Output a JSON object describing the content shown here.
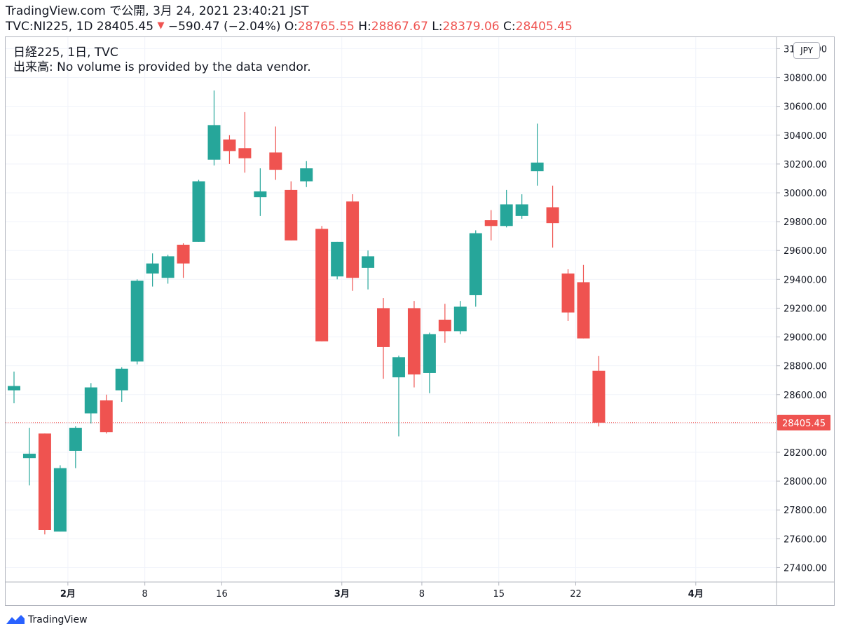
{
  "header": {
    "line1": "TradingView.com で公開, 3月 24, 2021 23:40:21 JST",
    "symbol_info": "TVC:NI225, 1D 28405.45",
    "arrow": "▼",
    "change": "−590.47 (−2.04%)",
    "o_label": "O:",
    "o_value": "28765.55",
    "h_label": "H:",
    "h_value": "28867.67",
    "l_label": "L:",
    "l_value": "28379.06",
    "c_label": "C:",
    "c_value": "28405.45"
  },
  "legend": {
    "title": "日経225, 1日, TVC",
    "volume_note": "出来高: No volume is provided by the data vendor."
  },
  "currency": "JPY",
  "last_price_label": "28405.45",
  "footer": {
    "brand": "TradingView"
  },
  "colors": {
    "up": "#26a69a",
    "down": "#ef5350",
    "grid": "#f0f3fa",
    "axis": "#b2b5be",
    "text": "#131722"
  },
  "chart_data": {
    "type": "candlestick",
    "y_ticks": [
      "27400.00",
      "27600.00",
      "27800.00",
      "28000.00",
      "28200.00",
      "28400.00",
      "28600.00",
      "28800.00",
      "29000.00",
      "29200.00",
      "29400.00",
      "29600.00",
      "29800.00",
      "30000.00",
      "30200.00",
      "30400.00",
      "30600.00",
      "30800.00",
      "31000.00"
    ],
    "ylim": [
      27300,
      31080
    ],
    "x_ticks": [
      {
        "i": 3.5,
        "label": "2月",
        "bold": true
      },
      {
        "i": 8.5,
        "label": "8",
        "bold": false
      },
      {
        "i": 13.5,
        "label": "16",
        "bold": false
      },
      {
        "i": 21.3,
        "label": "3月",
        "bold": true
      },
      {
        "i": 26.5,
        "label": "8",
        "bold": false
      },
      {
        "i": 31.5,
        "label": "15",
        "bold": false
      },
      {
        "i": 36.5,
        "label": "22",
        "bold": false
      },
      {
        "i": 44.3,
        "label": "4月",
        "bold": true
      }
    ],
    "x_range": [
      0,
      49
    ],
    "last_price": 28405.45,
    "candles": [
      {
        "o": 28630,
        "h": 28760,
        "l": 28540,
        "c": 28660
      },
      {
        "o": 28160,
        "h": 28370,
        "l": 27970,
        "c": 28190
      },
      {
        "o": 28330,
        "h": 28330,
        "l": 27630,
        "c": 27660
      },
      {
        "o": 27650,
        "h": 28110,
        "l": 27650,
        "c": 28090
      },
      {
        "o": 28210,
        "h": 28380,
        "l": 28090,
        "c": 28370
      },
      {
        "o": 28470,
        "h": 28680,
        "l": 28400,
        "c": 28650
      },
      {
        "o": 28560,
        "h": 28600,
        "l": 28330,
        "c": 28340
      },
      {
        "o": 28630,
        "h": 28790,
        "l": 28550,
        "c": 28780
      },
      {
        "o": 28830,
        "h": 29400,
        "l": 28810,
        "c": 29390
      },
      {
        "o": 29440,
        "h": 29580,
        "l": 29350,
        "c": 29510
      },
      {
        "o": 29410,
        "h": 29570,
        "l": 29370,
        "c": 29560
      },
      {
        "o": 29640,
        "h": 29650,
        "l": 29410,
        "c": 29510
      },
      {
        "o": 29660,
        "h": 30090,
        "l": 29660,
        "c": 30080
      },
      {
        "o": 30230,
        "h": 30710,
        "l": 30190,
        "c": 30470
      },
      {
        "o": 30370,
        "h": 30400,
        "l": 30200,
        "c": 30290
      },
      {
        "o": 30310,
        "h": 30560,
        "l": 30140,
        "c": 30240
      },
      {
        "o": 29970,
        "h": 30170,
        "l": 29840,
        "c": 30010
      },
      {
        "o": 30280,
        "h": 30460,
        "l": 30090,
        "c": 30160
      },
      {
        "o": 30020,
        "h": 30080,
        "l": 29670,
        "c": 29670
      },
      {
        "o": 30080,
        "h": 30220,
        "l": 30040,
        "c": 30170
      },
      {
        "o": 29750,
        "h": 29770,
        "l": 28970,
        "c": 28970
      },
      {
        "o": 29420,
        "h": 29660,
        "l": 29400,
        "c": 29660
      },
      {
        "o": 29940,
        "h": 29990,
        "l": 29320,
        "c": 29410
      },
      {
        "o": 29480,
        "h": 29600,
        "l": 29330,
        "c": 29560
      },
      {
        "o": 29200,
        "h": 29270,
        "l": 28710,
        "c": 28930
      },
      {
        "o": 28720,
        "h": 28870,
        "l": 28310,
        "c": 28860
      },
      {
        "o": 29200,
        "h": 29250,
        "l": 28650,
        "c": 28740
      },
      {
        "o": 28750,
        "h": 29030,
        "l": 28610,
        "c": 29020
      },
      {
        "o": 29120,
        "h": 29230,
        "l": 28960,
        "c": 29040
      },
      {
        "o": 29040,
        "h": 29250,
        "l": 29020,
        "c": 29210
      },
      {
        "o": 29290,
        "h": 29740,
        "l": 29210,
        "c": 29720
      },
      {
        "o": 29810,
        "h": 29880,
        "l": 29670,
        "c": 29770
      },
      {
        "o": 29770,
        "h": 30020,
        "l": 29760,
        "c": 29920
      },
      {
        "o": 29840,
        "h": 29990,
        "l": 29820,
        "c": 29920
      },
      {
        "o": 30150,
        "h": 30480,
        "l": 30050,
        "c": 30210
      },
      {
        "o": 29900,
        "h": 30050,
        "l": 29620,
        "c": 29790
      },
      {
        "o": 29440,
        "h": 29470,
        "l": 29110,
        "c": 29170
      },
      {
        "o": 29380,
        "h": 29500,
        "l": 28990,
        "c": 28990
      },
      {
        "o": 28765.55,
        "h": 28867.67,
        "l": 28379.06,
        "c": 28405.45
      }
    ]
  }
}
